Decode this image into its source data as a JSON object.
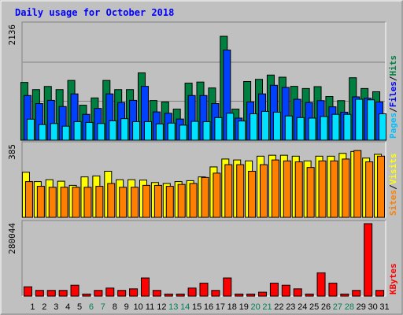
{
  "chart_data": {
    "type": "bar",
    "title": "Daily usage for October 2018",
    "days": [
      "1",
      "2",
      "3",
      "4",
      "5",
      "6",
      "7",
      "8",
      "9",
      "10",
      "11",
      "12",
      "13",
      "14",
      "15",
      "16",
      "17",
      "18",
      "19",
      "20",
      "21",
      "22",
      "23",
      "24",
      "25",
      "26",
      "27",
      "28",
      "29",
      "30",
      "31"
    ],
    "weekend_days": [
      6,
      7,
      13,
      14,
      20,
      21,
      27,
      28
    ],
    "panels": [
      {
        "ymax_label": "2136",
        "ymax": 2136,
        "legend": [
          "Pages",
          "/",
          "Files",
          "/",
          "Hits"
        ],
        "series": [
          {
            "name": "Hits",
            "values": [
              1073,
              940,
              998,
              940,
              1110,
              650,
              785,
              1110,
              940,
              940,
              1250,
              737,
              710,
              578,
              1060,
              1080,
              970,
              1930,
              578,
              1090,
              1130,
              1210,
              1170,
              1000,
              960,
              995,
              812,
              735,
              1160,
              960,
              900
            ]
          },
          {
            "name": "Files",
            "values": [
              830,
              680,
              740,
              625,
              860,
              480,
              590,
              860,
              700,
              740,
              1000,
              525,
              500,
              393,
              830,
              830,
              680,
              1675,
              410,
              710,
              860,
              1020,
              980,
              760,
              700,
              735,
              620,
              520,
              805,
              780,
              710
            ]
          },
          {
            "name": "Pages",
            "values": [
              390,
              290,
              310,
              260,
              345,
              330,
              310,
              360,
              400,
              345,
              345,
              302,
              317,
              280,
              350,
              345,
              420,
              500,
              356,
              490,
              535,
              520,
              450,
              420,
              410,
              440,
              480,
              480,
              760,
              750,
              490
            ]
          }
        ]
      },
      {
        "ymax_label": "385",
        "ymax": 385,
        "legend": [
          "Sites",
          "/",
          "Visits"
        ],
        "series": [
          {
            "name": "Visits",
            "values": [
              240,
              190,
              200,
              192,
              170,
              215,
              220,
              245,
              200,
              200,
              198,
              185,
              180,
              190,
              195,
              215,
              268,
              310,
              305,
              300,
              325,
              330,
              330,
              325,
              300,
              325,
              325,
              340,
              350,
              315,
              335
            ]
          },
          {
            "name": "Sites",
            "values": [
              190,
              165,
              160,
              160,
              160,
              160,
              165,
              180,
              160,
              160,
              170,
              170,
              165,
              175,
              180,
              212,
              235,
              280,
              280,
              245,
              280,
              305,
              300,
              295,
              265,
              300,
              300,
              310,
              355,
              295,
              325
            ]
          }
        ]
      },
      {
        "ymax_label": "280044",
        "ymax": 280044,
        "legend": [
          "KBytes"
        ],
        "series": [
          {
            "name": "KBytes",
            "values": [
              36000,
              22000,
              22000,
              22000,
              42000,
              8000,
              22000,
              31000,
              22000,
              28000,
              70000,
              22000,
              8000,
              8000,
              31000,
              50000,
              22000,
              70000,
              8000,
              8000,
              15000,
              50000,
              42000,
              28000,
              8000,
              90000,
              50000,
              8000,
              22000,
              280044,
              22000
            ]
          }
        ]
      }
    ]
  }
}
